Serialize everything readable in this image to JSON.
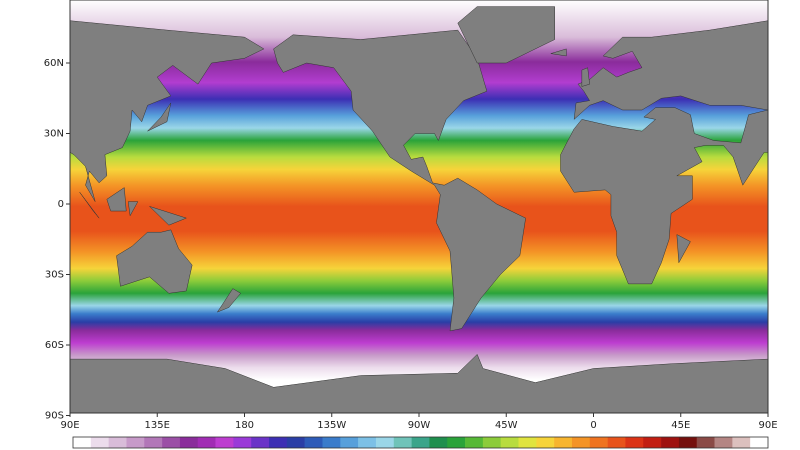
{
  "map": {
    "lat_labels": [
      "60N",
      "30N",
      "0",
      "30S",
      "60S",
      "90S"
    ],
    "lon_labels": [
      "90E",
      "135E",
      "180",
      "135W",
      "90W",
      "45W",
      "0",
      "45E",
      "90E"
    ],
    "colorbar": {
      "colors": [
        "#ffffff",
        "#ecdcec",
        "#d9bcd9",
        "#c79ac9",
        "#b277b8",
        "#9b4fa6",
        "#8a2c9b",
        "#a12cb4",
        "#bd3dd0",
        "#9a3ad8",
        "#6a33c8",
        "#3c2fb4",
        "#2a3ea6",
        "#2d5bb8",
        "#3a7ccb",
        "#57a0db",
        "#7cc0e6",
        "#9ad6e8",
        "#6fc3b9",
        "#3aa58a",
        "#1f8f4e",
        "#2aa33a",
        "#56b936",
        "#8ccc3a",
        "#b8dc3e",
        "#e0e43e",
        "#f6d43a",
        "#f7b52f",
        "#f49426",
        "#ef7320",
        "#e8531b",
        "#db3316",
        "#c21e12",
        "#9e1210",
        "#74100d",
        "#8a4a46",
        "#b48583",
        "#dcc0be",
        "#ffffff"
      ]
    }
  }
}
